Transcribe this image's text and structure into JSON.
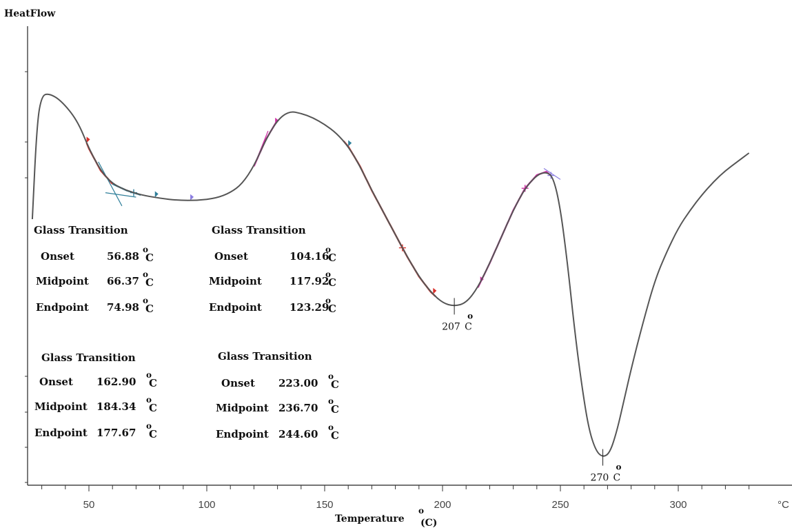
{
  "chart_data": {
    "type": "line",
    "title": "",
    "ylabel": "HeatFlow",
    "xlabel": "Temperature",
    "xlabel_unit": "(C)",
    "xlabel_degree": "o",
    "xlim": [
      25,
      330
    ],
    "xticks": [
      50,
      100,
      150,
      200,
      250,
      300
    ],
    "x_unit_label": "°C",
    "grid": false,
    "series": [
      {
        "x": [
          26,
          28,
          30,
          33,
          38,
          45,
          50,
          55,
          60,
          66,
          72,
          80,
          88,
          96,
          104,
          110,
          115,
          120,
          125,
          130,
          135,
          140,
          145,
          150,
          155,
          160,
          165,
          170,
          175,
          180,
          185,
          190,
          195,
          200,
          205,
          210,
          215,
          220,
          225,
          230,
          235,
          240,
          244,
          247,
          250,
          253,
          256,
          259,
          262,
          265,
          268,
          271,
          274,
          277,
          280,
          285,
          290,
          295,
          300,
          305,
          310,
          315,
          320,
          325,
          330
        ],
        "y": [
          40,
          84,
          96,
          97,
          94,
          85,
          72,
          62,
          56,
          53,
          51,
          49.5,
          48.5,
          48.5,
          49.5,
          52,
          56,
          64,
          76,
          85,
          89,
          88,
          86,
          83,
          79,
          73,
          64,
          53,
          43,
          33,
          23,
          14,
          7,
          2,
          0.5,
          2,
          9,
          20,
          32,
          44,
          54,
          60,
          61.5,
          59,
          45,
          20,
          -10,
          -35,
          -55,
          -65,
          -68,
          -66,
          -56,
          -42,
          -28,
          -7,
          12,
          25,
          36,
          44,
          51,
          57,
          62,
          66,
          70
        ]
      }
    ],
    "peak_labels": [
      {
        "x": 205,
        "y": 0.5,
        "text": "207",
        "deg": "o",
        "unit": "C"
      },
      {
        "x": 268,
        "y": -68,
        "text": "270",
        "deg": "o",
        "unit": "C"
      }
    ]
  },
  "transitions": [
    {
      "title": "Glass Transition",
      "rows": [
        {
          "label": "Onset",
          "value": "56.88",
          "deg": "o",
          "unit": "C"
        },
        {
          "label": "Midpoint",
          "value": "66.37",
          "deg": "o",
          "unit": "C"
        },
        {
          "label": "Endpoint",
          "value": "74.98",
          "deg": "o",
          "unit": "C"
        }
      ]
    },
    {
      "title": "Glass Transition",
      "rows": [
        {
          "label": "Onset",
          "value": "104.16",
          "deg": "o",
          "unit": "C"
        },
        {
          "label": "Midpoint",
          "value": "117.92",
          "deg": "o",
          "unit": "C"
        },
        {
          "label": "Endpoint",
          "value": "123.29",
          "deg": "o",
          "unit": "C"
        }
      ]
    },
    {
      "title": "Glass Transition",
      "rows": [
        {
          "label": "Onset",
          "value": "162.90",
          "deg": "o",
          "unit": "C"
        },
        {
          "label": "Midpoint",
          "value": "184.34",
          "deg": "o",
          "unit": "C"
        },
        {
          "label": "Endpoint",
          "value": "177.67",
          "deg": "o",
          "unit": "C"
        }
      ]
    },
    {
      "title": "Glass Transition",
      "rows": [
        {
          "label": "Onset",
          "value": "223.00",
          "deg": "o",
          "unit": "C"
        },
        {
          "label": "Midpoint",
          "value": "236.70",
          "deg": "o",
          "unit": "C"
        },
        {
          "label": "Endpoint",
          "value": "244.60",
          "deg": "o",
          "unit": "C"
        }
      ]
    }
  ],
  "colors": {
    "curve": "#555555",
    "axis": "#222222",
    "segment_red": "#d9302b",
    "segment_teal": "#2f7f9a",
    "segment_magenta": "#cc2fa3",
    "segment_violet": "#8a7de0"
  }
}
